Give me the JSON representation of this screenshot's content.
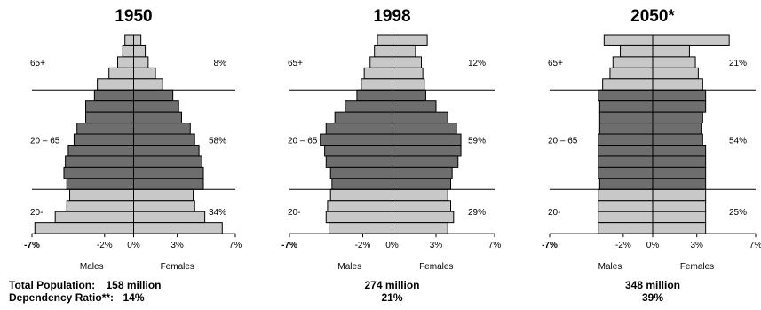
{
  "chart_data": [
    {
      "type": "bar",
      "title": "1950",
      "orientation": "horizontal-pyramid",
      "xlim": [
        -7,
        7
      ],
      "x_ticks": [
        "-7%",
        "-2%",
        "0%",
        "3%",
        "7%"
      ],
      "x_tick_values": [
        -7,
        -2,
        0,
        3,
        7
      ],
      "sides": [
        "Males",
        "Females"
      ],
      "groups": [
        {
          "label": "65+",
          "share": "8%"
        },
        {
          "label": "20 – 65",
          "share": "58%"
        },
        {
          "label": "20-",
          "share": "34%"
        }
      ],
      "group_rows": [
        5,
        9,
        4
      ],
      "group_colors": [
        "#c8c8c8",
        "#6e6e6e",
        "#c8c8c8"
      ],
      "males": [
        0.6,
        0.75,
        1.1,
        1.7,
        2.5,
        2.7,
        3.3,
        3.3,
        3.9,
        4.1,
        4.5,
        4.7,
        4.8,
        4.6,
        4.4,
        4.6,
        5.4,
        6.8
      ],
      "females": [
        0.5,
        0.8,
        1.0,
        1.5,
        2.0,
        2.7,
        3.1,
        3.3,
        3.9,
        4.2,
        4.5,
        4.7,
        4.8,
        4.8,
        4.1,
        4.2,
        4.9,
        6.1
      ],
      "footer": {
        "population": "158 million",
        "dependency": "14%"
      }
    },
    {
      "type": "bar",
      "title": "1998",
      "orientation": "horizontal-pyramid",
      "xlim": [
        -7,
        7
      ],
      "x_ticks": [
        "-7%",
        "-2%",
        "0%",
        "3%",
        "7%"
      ],
      "x_tick_values": [
        -7,
        -2,
        0,
        3,
        7
      ],
      "sides": [
        "Males",
        "Females"
      ],
      "groups": [
        {
          "label": "65+",
          "share": "12%"
        },
        {
          "label": "20 – 65",
          "share": "59%"
        },
        {
          "label": "20-",
          "share": "29%"
        }
      ],
      "group_rows": [
        5,
        9,
        4
      ],
      "group_colors": [
        "#c8c8c8",
        "#6e6e6e",
        "#c8c8c8"
      ],
      "males": [
        1.0,
        1.2,
        1.5,
        1.9,
        2.1,
        2.4,
        3.2,
        3.9,
        4.5,
        4.9,
        4.6,
        4.5,
        4.2,
        4.1,
        4.2,
        4.4,
        4.5,
        4.3
      ],
      "females": [
        2.4,
        1.6,
        2.0,
        2.1,
        2.2,
        2.3,
        3.0,
        3.8,
        4.4,
        4.7,
        4.7,
        4.5,
        4.1,
        4.0,
        3.8,
        4.0,
        4.2,
        3.8
      ],
      "footer": {
        "population": "274 million",
        "dependency": "21%"
      }
    },
    {
      "type": "bar",
      "title": "2050*",
      "orientation": "horizontal-pyramid",
      "xlim": [
        -7,
        7
      ],
      "x_ticks": [
        "-7%",
        "-2%",
        "0%",
        "3%",
        "7%"
      ],
      "x_tick_values": [
        -7,
        -2,
        0,
        3,
        7
      ],
      "sides": [
        "Males",
        "Females"
      ],
      "groups": [
        {
          "label": "65+",
          "share": "21%"
        },
        {
          "label": "20 – 65",
          "share": "54%"
        },
        {
          "label": "20-",
          "share": "25%"
        }
      ],
      "group_rows": [
        5,
        9,
        4
      ],
      "group_colors": [
        "#c8c8c8",
        "#6e6e6e",
        "#c8c8c8"
      ],
      "males": [
        3.3,
        2.2,
        2.7,
        2.9,
        3.4,
        3.7,
        3.6,
        3.6,
        3.6,
        3.7,
        3.7,
        3.7,
        3.7,
        3.6,
        3.7,
        3.7,
        3.7,
        3.7
      ],
      "females": [
        5.2,
        2.5,
        2.9,
        3.1,
        3.4,
        3.6,
        3.6,
        3.4,
        3.3,
        3.4,
        3.6,
        3.6,
        3.6,
        3.6,
        3.6,
        3.6,
        3.6,
        3.6
      ],
      "footer": {
        "population": "348 million",
        "dependency": "39%"
      }
    }
  ],
  "footer_labels": {
    "population_label": "Total Population:",
    "dependency_label": "Dependency Ratio**:"
  }
}
